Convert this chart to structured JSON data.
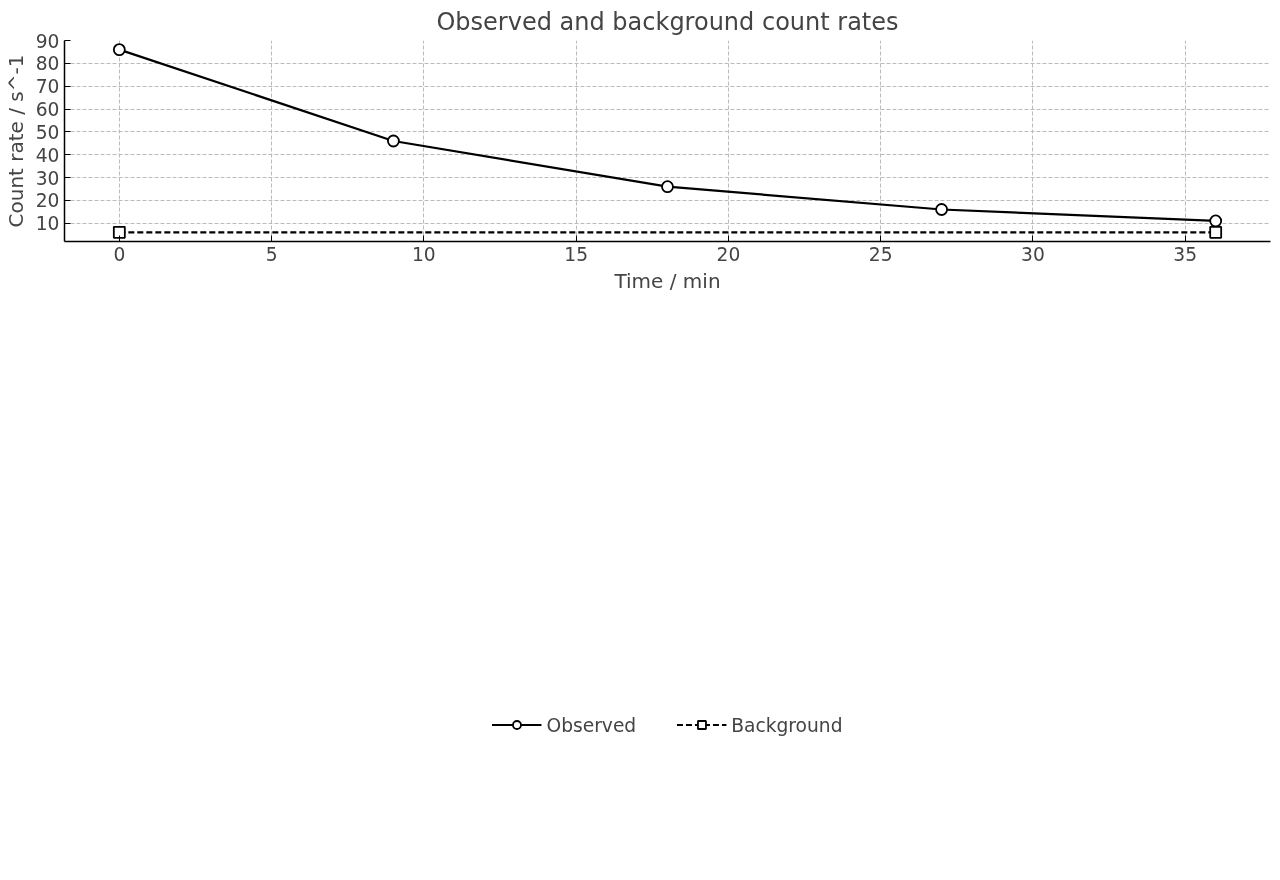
{
  "chart_data": {
    "type": "line",
    "title": "Observed and background count rates",
    "xlabel": "Time / min",
    "ylabel": "Count rate / s^-1",
    "xlim": [
      -1.8,
      37.8
    ],
    "ylim": [
      2,
      90
    ],
    "xticks": [
      0,
      5,
      10,
      15,
      20,
      25,
      30,
      35
    ],
    "yticks": [
      10,
      20,
      30,
      40,
      50,
      60,
      70,
      80,
      90
    ],
    "grid": true,
    "legend": "bottom",
    "series": [
      {
        "name": "Observed",
        "color": "#000000",
        "x": [
          0,
          9,
          18,
          27,
          36
        ],
        "values": [
          86,
          46,
          26,
          16,
          11
        ],
        "marker": "circle",
        "line_style": "solid"
      },
      {
        "name": "Background",
        "color": "#000000",
        "x": [
          0,
          36
        ],
        "values": [
          6,
          6
        ],
        "marker": "square",
        "line_style": "dashed"
      }
    ]
  }
}
